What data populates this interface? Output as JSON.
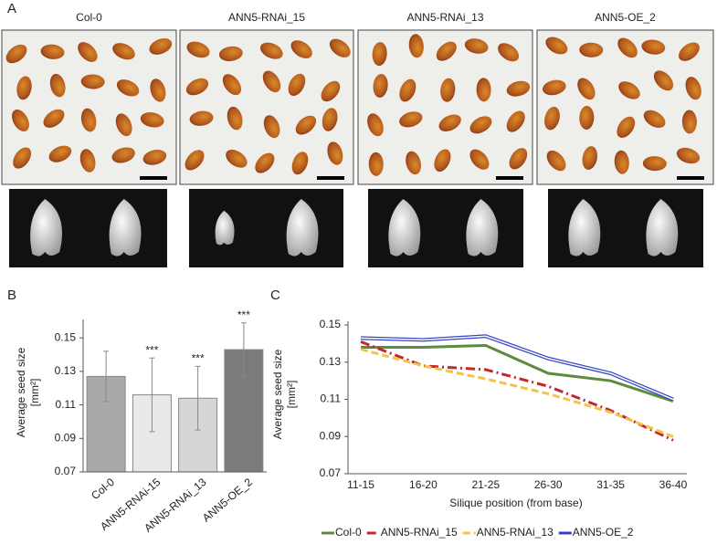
{
  "panel_a": {
    "label": "A",
    "titles": [
      "Col-0",
      "ANN5-RNAi_15",
      "ANN5-RNAi_13",
      "ANN5-OE_2"
    ]
  },
  "chart_data": [
    {
      "type": "bar",
      "panel": "B",
      "ylabel": [
        "Average seed size",
        "[mm²]"
      ],
      "categories": [
        "Col-0",
        "ANN5-RNAi-15",
        "ANN5-RNAi_13",
        "ANN5-OE_2"
      ],
      "values": [
        0.127,
        0.116,
        0.114,
        0.143
      ],
      "errors": [
        0.015,
        0.022,
        0.019,
        0.016
      ],
      "colors": [
        "#a9a9a9",
        "#e9e9e9",
        "#d6d6d6",
        "#7b7b7b"
      ],
      "annotations": [
        {
          "text": "***",
          "category": "ANN5-RNAi-15"
        },
        {
          "text": "***",
          "category": "ANN5-RNAi_13"
        },
        {
          "text": "***",
          "category": "ANN5-OE_2"
        }
      ],
      "ylim": [
        0.07,
        0.161
      ],
      "yticks": [
        0.07,
        0.09,
        0.11,
        0.13,
        0.15
      ]
    },
    {
      "type": "line",
      "panel": "C",
      "ylabel": [
        "Average seed size",
        "[mm²]"
      ],
      "xlabel": "Silique position (from base)",
      "categories": [
        "11-15",
        "16-20",
        "21-25",
        "26-30",
        "31-35",
        "36-40"
      ],
      "series": [
        {
          "name": "Col-0",
          "color": "#5b8c3e",
          "linestyle": "solid",
          "values": [
            0.138,
            0.138,
            0.139,
            0.124,
            0.12,
            0.109
          ]
        },
        {
          "name": "ANN5-RNAi_15",
          "color": "#c4272b",
          "linestyle": "dashdot",
          "values": [
            0.141,
            0.128,
            0.126,
            0.117,
            0.104,
            0.088
          ]
        },
        {
          "name": "ANN5-RNAi_13",
          "color": "#f1c548",
          "linestyle": "dashed",
          "values": [
            0.137,
            0.128,
            0.121,
            0.113,
            0.103,
            0.09
          ]
        },
        {
          "name": "ANN5-OE_2",
          "color": "#3343c8",
          "linestyle": "double",
          "values": [
            0.143,
            0.142,
            0.144,
            0.132,
            0.124,
            0.11
          ]
        }
      ],
      "ylim": [
        0.07,
        0.152
      ],
      "yticks": [
        0.07,
        0.09,
        0.11,
        0.13,
        0.15
      ],
      "legend": "bottom"
    }
  ]
}
